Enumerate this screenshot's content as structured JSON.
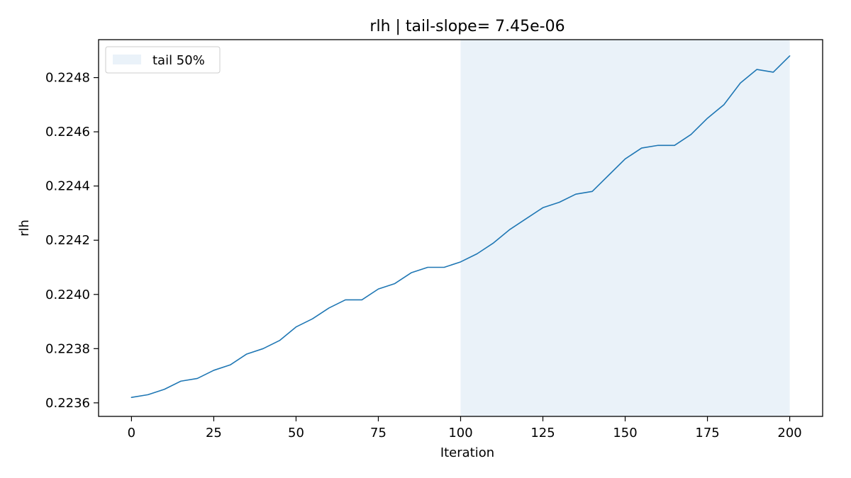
{
  "chart_data": {
    "type": "line",
    "title": "rlh | tail-slope= 7.45e-06",
    "xlabel": "Iteration",
    "ylabel": "rlh",
    "xlim": [
      -10,
      210
    ],
    "ylim": [
      0.22355,
      0.22494
    ],
    "xticks": [
      0,
      25,
      50,
      75,
      100,
      125,
      150,
      175,
      200
    ],
    "xtick_labels": [
      "0",
      "25",
      "50",
      "75",
      "100",
      "125",
      "150",
      "175",
      "200"
    ],
    "yticks": [
      0.2236,
      0.2238,
      0.224,
      0.2242,
      0.2244,
      0.2246,
      0.2248
    ],
    "ytick_labels": [
      "0.2236",
      "0.2238",
      "0.2240",
      "0.2242",
      "0.2244",
      "0.2246",
      "0.2248"
    ],
    "grid": false,
    "legend_position": "top-left",
    "shaded_region": {
      "label": "tail 50%",
      "x_start": 100,
      "x_end": 200,
      "color": "#eaf2f9"
    },
    "series": [
      {
        "color": "#1f77b4",
        "x": [
          0,
          5,
          10,
          15,
          20,
          25,
          30,
          35,
          40,
          45,
          50,
          55,
          60,
          65,
          70,
          75,
          80,
          85,
          90,
          95,
          100,
          105,
          110,
          115,
          120,
          125,
          130,
          135,
          140,
          145,
          150,
          155,
          160,
          165,
          170,
          175,
          180,
          185,
          190,
          195,
          200
        ],
        "y": [
          0.22362,
          0.22363,
          0.22365,
          0.22368,
          0.22369,
          0.22372,
          0.22374,
          0.22378,
          0.2238,
          0.22383,
          0.22388,
          0.22391,
          0.22395,
          0.22398,
          0.22398,
          0.22402,
          0.22404,
          0.22408,
          0.2241,
          0.2241,
          0.22412,
          0.22415,
          0.22419,
          0.22424,
          0.22428,
          0.22432,
          0.22434,
          0.22437,
          0.22438,
          0.22444,
          0.2245,
          0.22454,
          0.22455,
          0.22455,
          0.22459,
          0.22465,
          0.2247,
          0.22478,
          0.22483,
          0.22482,
          0.22488
        ]
      }
    ]
  }
}
